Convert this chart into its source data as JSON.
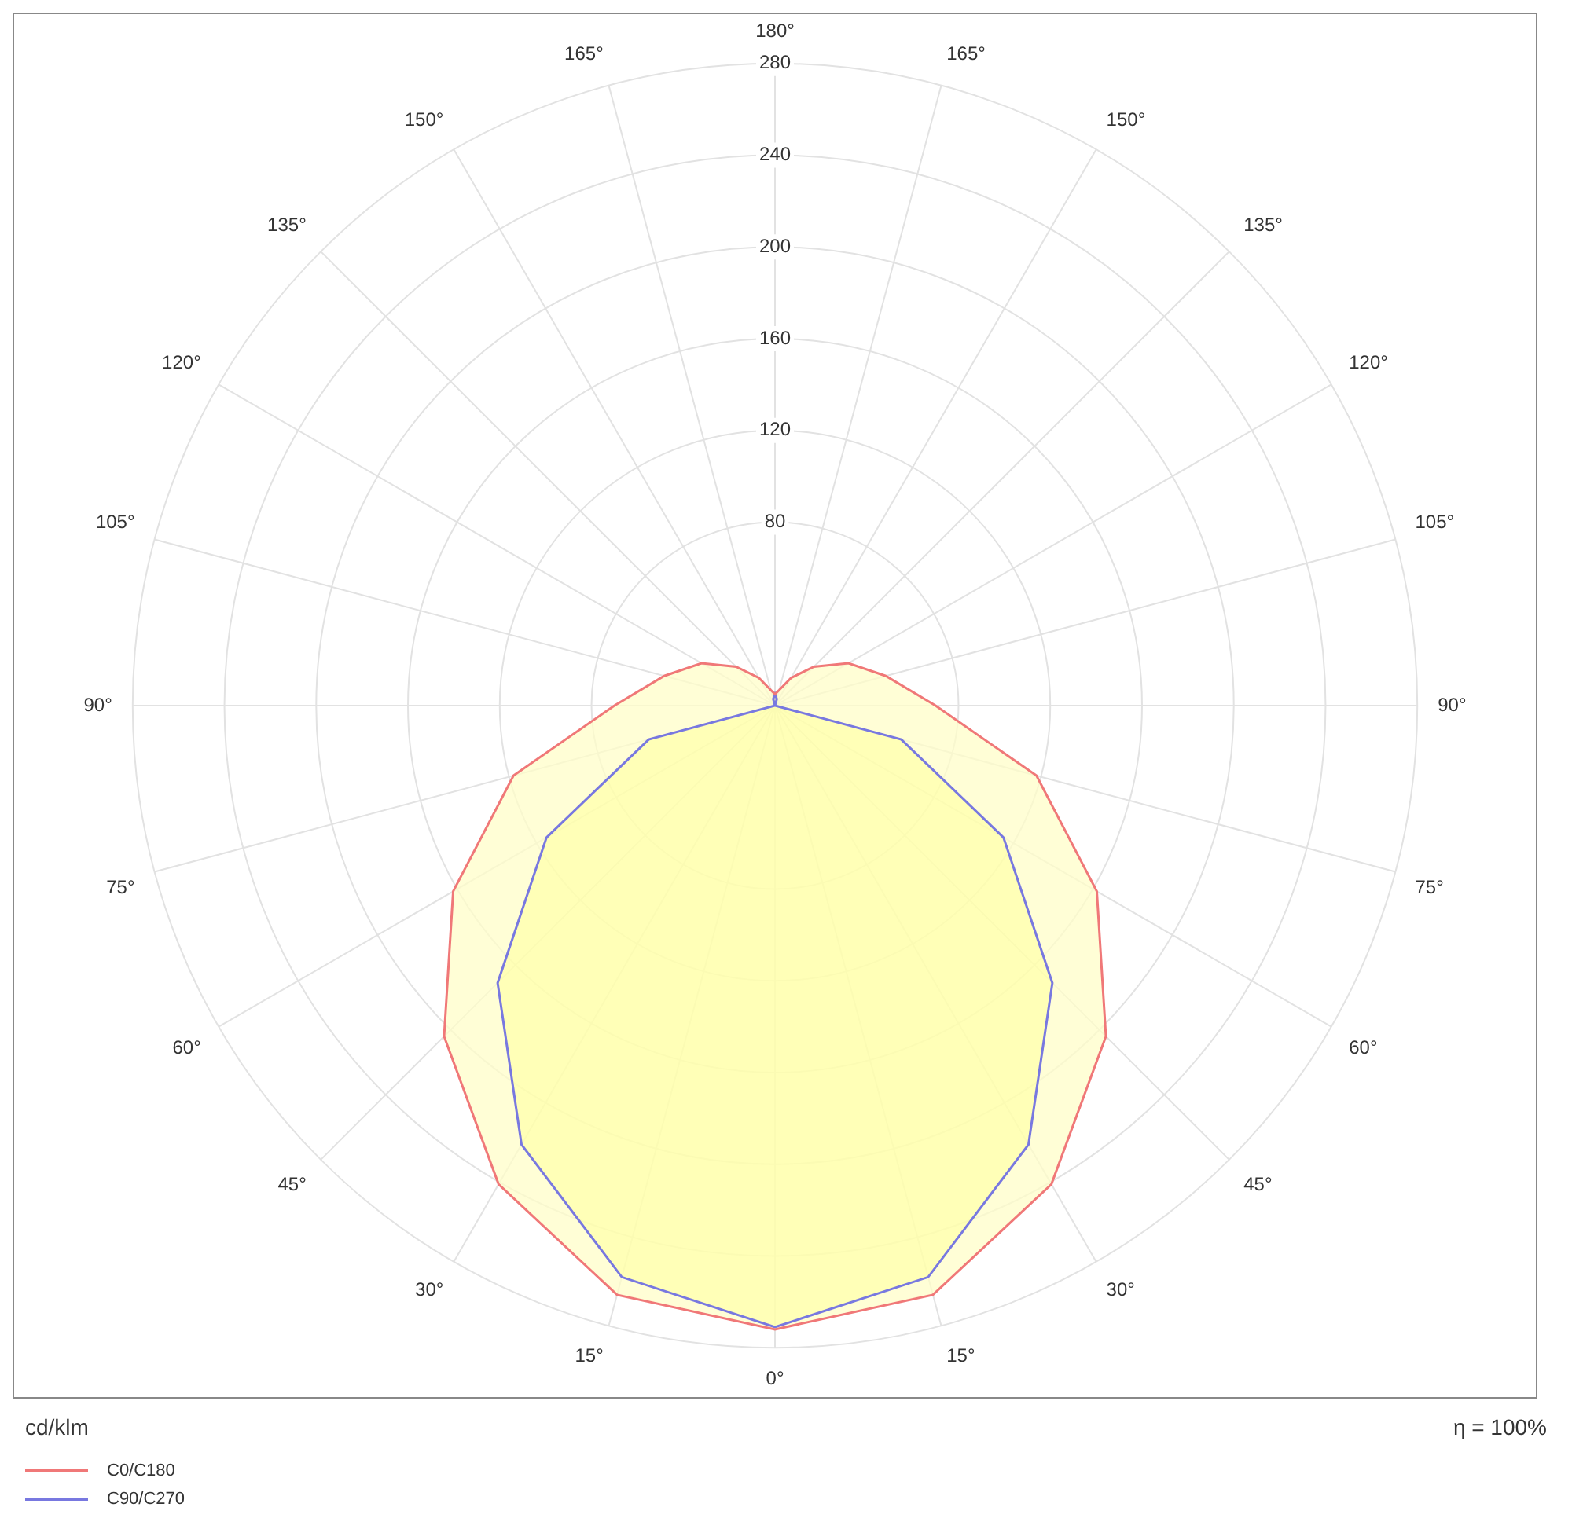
{
  "chart_data": {
    "type": "radar",
    "ylabel": "cd/klm",
    "annotations": [
      "η = 100%"
    ],
    "categories": [
      "180°",
      "165°",
      "150°",
      "135°",
      "120°",
      "105°",
      "90°",
      "75°",
      "60°",
      "45°",
      "30°",
      "15°",
      "0°",
      "15°",
      "30°",
      "45°",
      "60°",
      "75°",
      "90°",
      "105°",
      "120°",
      "135°",
      "150°",
      "165°"
    ],
    "series": [
      {
        "name": "C0/C180",
        "color": "#f07878",
        "values": [
          5,
          7,
          14,
          24,
          37,
          50,
          70,
          118,
          162,
          204,
          241,
          266,
          272,
          266,
          241,
          204,
          162,
          118,
          70,
          50,
          37,
          24,
          14,
          7
        ]
      },
      {
        "name": "C90/C270",
        "color": "#7878e0",
        "values": [
          5,
          3,
          0,
          0,
          0,
          0,
          0,
          57,
          115,
          171,
          221,
          258,
          271,
          258,
          221,
          171,
          115,
          57,
          0,
          0,
          0,
          0,
          0,
          3
        ]
      }
    ],
    "ylim": [
      0,
      280
    ],
    "yticks": [
      80,
      120,
      160,
      200,
      240,
      280
    ],
    "grid": true,
    "legend": "bottom left"
  }
}
